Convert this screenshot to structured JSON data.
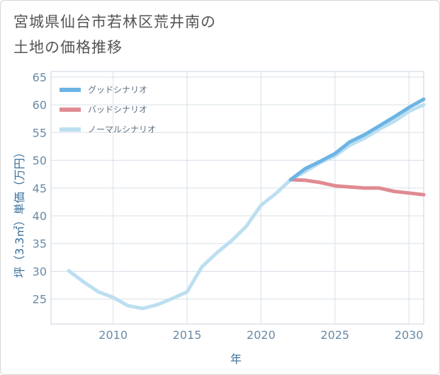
{
  "title_lines": [
    "宮城県仙台市若林区荒井南の",
    "土地の価格推移"
  ],
  "chart_data": {
    "type": "line",
    "xlabel": "年",
    "ylabel": "坪（3.3㎡）単価（万円）",
    "xlim": [
      2005.8,
      2031
    ],
    "ylim": [
      20.5,
      66
    ],
    "xticks": [
      2010,
      2015,
      2020,
      2025,
      2030
    ],
    "yticks": [
      25,
      30,
      35,
      40,
      45,
      50,
      55,
      60,
      65
    ],
    "grid": true,
    "legend_position": "top-left",
    "series": [
      {
        "name": "グッドシナリオ",
        "color": "#6cb4e4",
        "x": [
          2022,
          2023,
          2024,
          2025,
          2026,
          2027,
          2028,
          2029,
          2030,
          2031
        ],
        "values": [
          46.5,
          48.5,
          49.8,
          51.2,
          53.3,
          54.6,
          56.2,
          57.8,
          59.5,
          61.0
        ]
      },
      {
        "name": "バッドシナリオ",
        "color": "#e08a92",
        "x": [
          2022,
          2023,
          2024,
          2025,
          2026,
          2027,
          2028,
          2029,
          2030,
          2031
        ],
        "values": [
          46.5,
          46.4,
          46.0,
          45.4,
          45.2,
          45.0,
          45.0,
          44.4,
          44.1,
          43.8
        ]
      },
      {
        "name": "ノーマルシナリオ",
        "color": "#bcdff0",
        "x": [
          2007,
          2008,
          2009,
          2010,
          2011,
          2012,
          2013,
          2014,
          2015,
          2016,
          2017,
          2018,
          2019,
          2020,
          2021,
          2022,
          2023,
          2024,
          2025,
          2026,
          2027,
          2028,
          2029,
          2030,
          2031
        ],
        "values": [
          30.1,
          28.1,
          26.3,
          25.3,
          23.8,
          23.3,
          24.0,
          25.1,
          26.3,
          30.8,
          33.3,
          35.5,
          38.1,
          41.9,
          44.0,
          46.5,
          48.0,
          49.6,
          50.8,
          52.7,
          54.0,
          55.6,
          57.0,
          58.8,
          60.0
        ]
      }
    ]
  }
}
